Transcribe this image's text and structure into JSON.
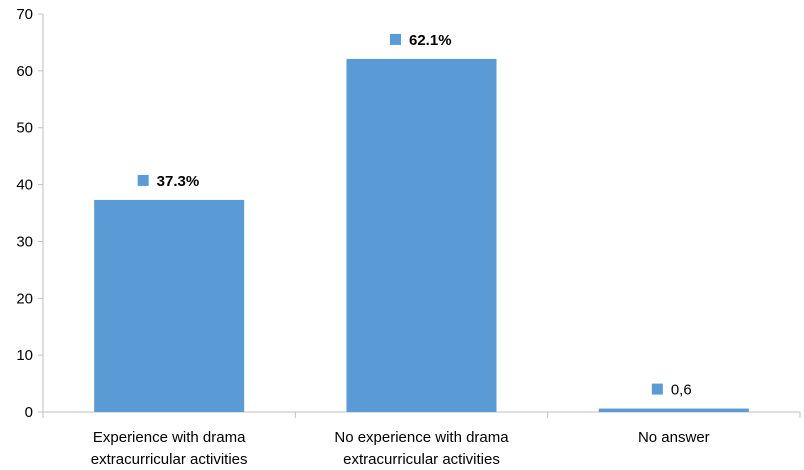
{
  "chart_data": {
    "type": "bar",
    "title": "",
    "xlabel": "",
    "ylabel": "",
    "categories": [
      [
        "Experience with drama",
        "extracurricular activities"
      ],
      [
        "No experience with drama",
        "extracurricular activities"
      ],
      [
        "No answer"
      ]
    ],
    "values": [
      37.3,
      62.1,
      0.6
    ],
    "data_labels": [
      "37.3%",
      "62.1%",
      "0,6"
    ],
    "data_labels_bold": [
      true,
      true,
      false
    ],
    "ylim": [
      0,
      70
    ],
    "yticks": [
      0,
      10,
      20,
      30,
      40,
      50,
      60,
      70
    ],
    "grid": false,
    "legend": "none",
    "bar_color": "#5b9bd5",
    "axis_color": "#bfbfbf"
  }
}
